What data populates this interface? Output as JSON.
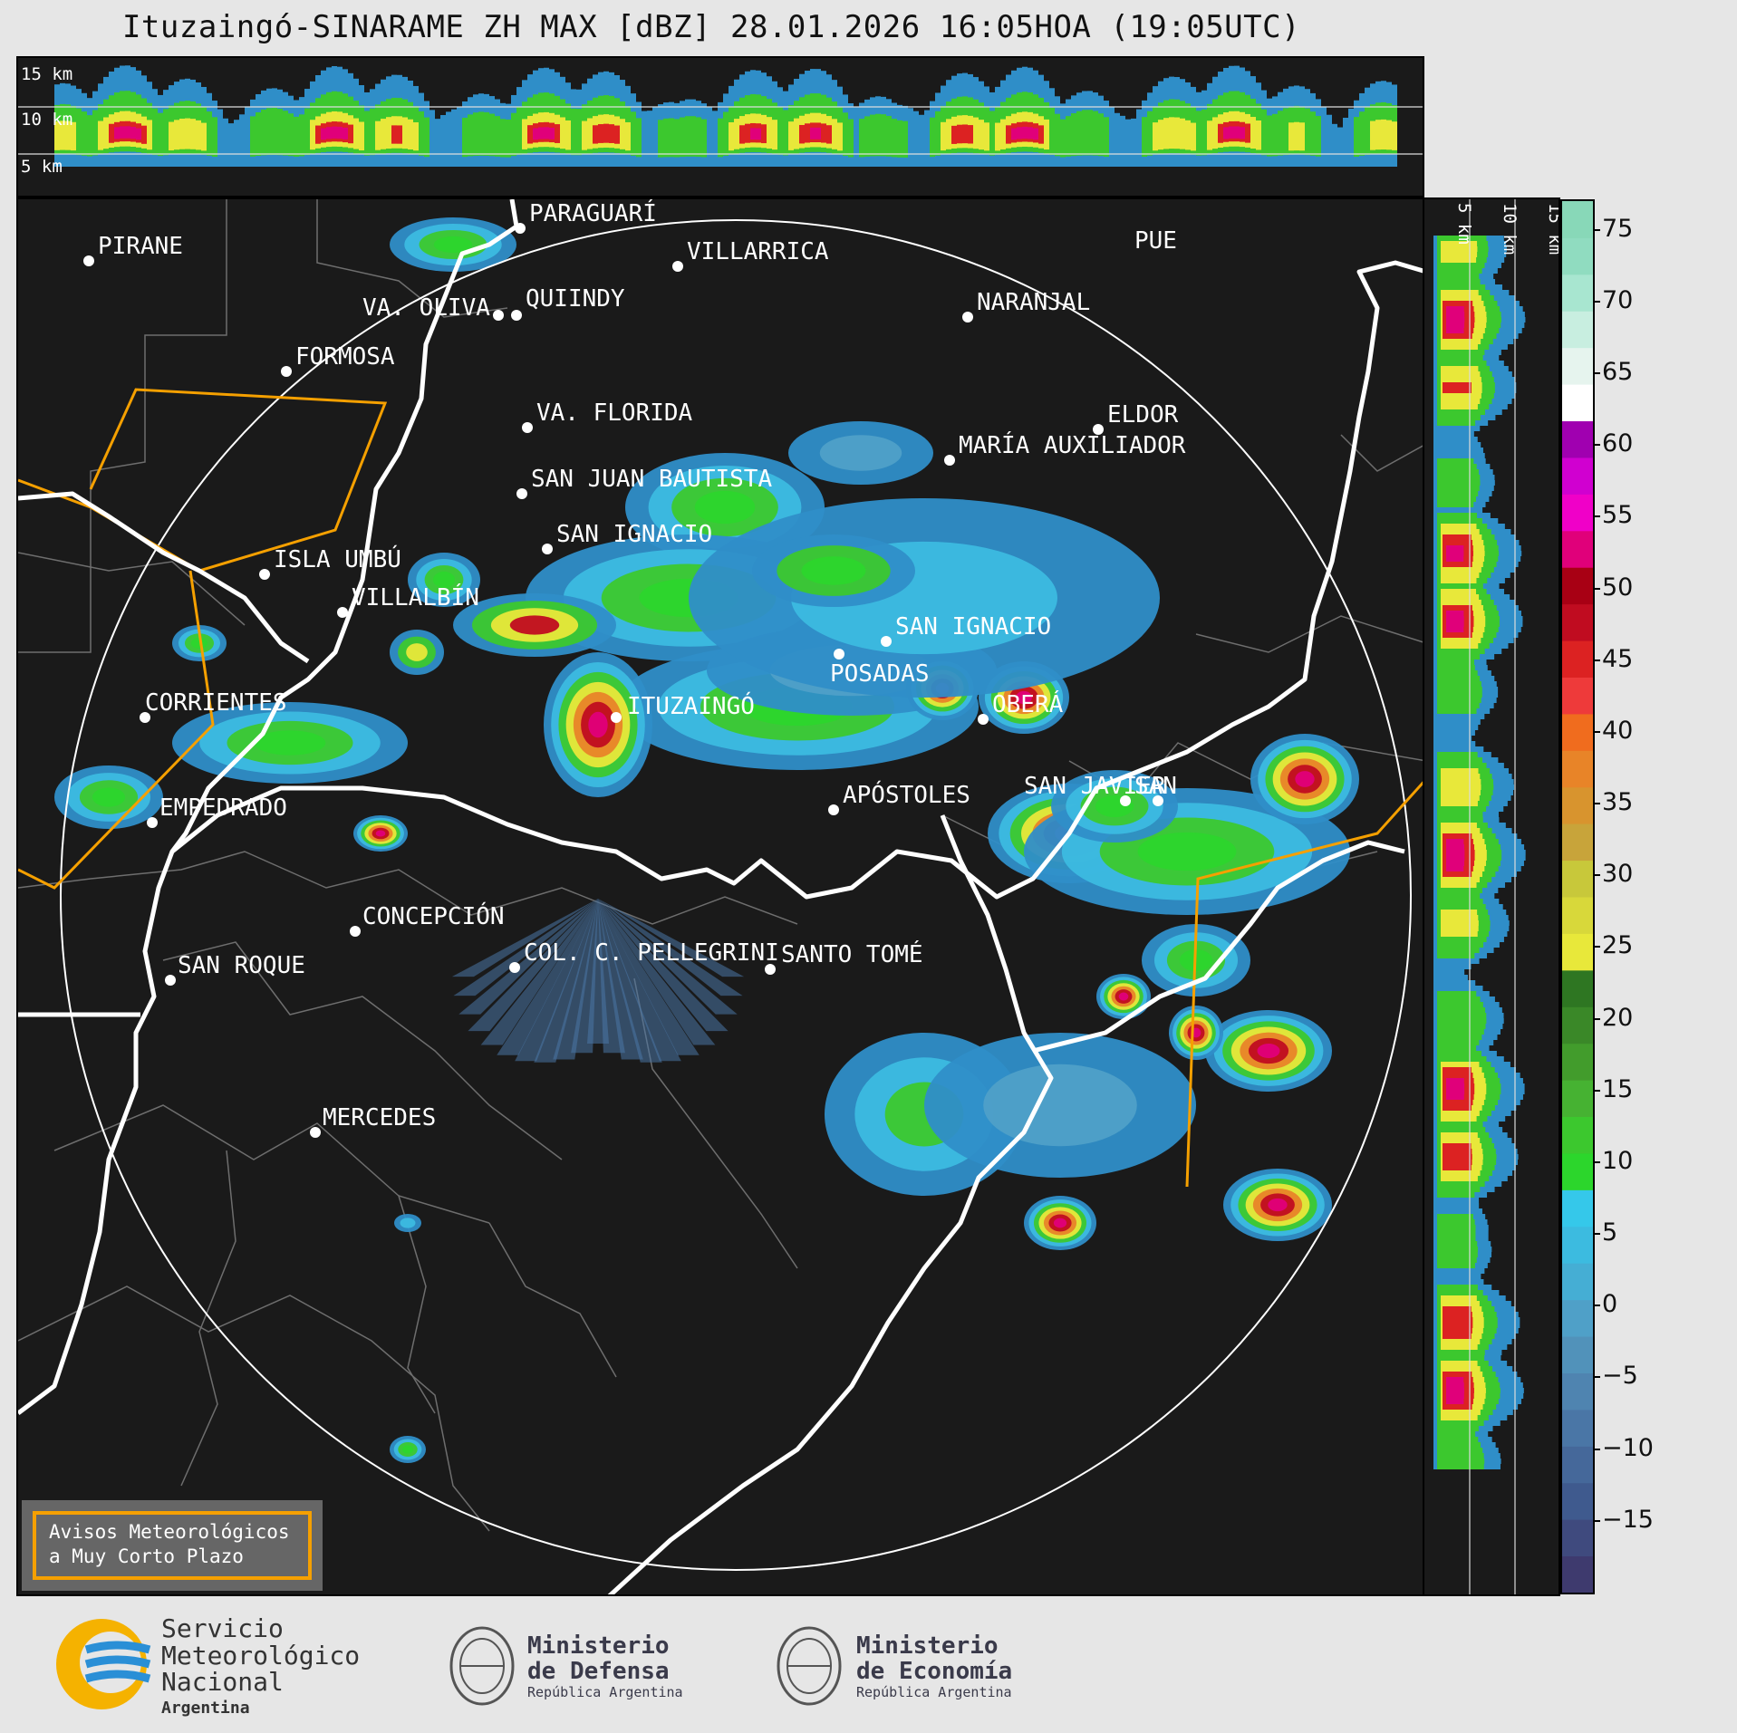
{
  "title": "Ituzaingó-SINARAME ZH MAX [dBZ] 28.01.2026 16:05HOA (19:05UTC)",
  "height_labels": [
    "15 km",
    "10 km",
    "5 km"
  ],
  "side_height_labels": [
    "5 km",
    "10 km",
    "15 km"
  ],
  "cities": [
    {
      "name": "PIRANE"
    },
    {
      "name": "PARAGUARÍ"
    },
    {
      "name": "VILLARRICA"
    },
    {
      "name": "VA. OLIVA"
    },
    {
      "name": "QUIINDY"
    },
    {
      "name": "NARANJAL"
    },
    {
      "name": "FORMOSA"
    },
    {
      "name": "VA. FLORIDA"
    },
    {
      "name": "ELDOR"
    },
    {
      "name": "MARÍA AUXILIADOR"
    },
    {
      "name": "SAN JUAN BAUTISTA"
    },
    {
      "name": "SAN IGNACIO"
    },
    {
      "name": "ISLA UMBÚ"
    },
    {
      "name": "VILLALBÍN"
    },
    {
      "name": "SAN IGNACIO"
    },
    {
      "name": "POSADAS"
    },
    {
      "name": "CORRIENTES"
    },
    {
      "name": "ITUZAINGÓ"
    },
    {
      "name": "OBERÁ"
    },
    {
      "name": "APÓSTOLES"
    },
    {
      "name": "SAN JAVIER"
    },
    {
      "name": "SAN"
    },
    {
      "name": "EMPEDRADO"
    },
    {
      "name": "CONCEPCIÓN"
    },
    {
      "name": "COL. C. PELLEGRINI"
    },
    {
      "name": "SANTO TOMÉ"
    },
    {
      "name": "SAN ROQUE"
    },
    {
      "name": "MERCEDES"
    },
    {
      "name": "PUE"
    }
  ],
  "warning_box": {
    "line1": "Avisos Meteorológicos",
    "line2": "a Muy Corto Plazo"
  },
  "colorbar": {
    "unit": "dBZ",
    "ticks": [
      "75",
      "70",
      "65",
      "60",
      "55",
      "50",
      "45",
      "40",
      "35",
      "30",
      "25",
      "20",
      "15",
      "10",
      "5",
      "0",
      "−5",
      "−10",
      "−15"
    ],
    "range": [
      -20,
      77
    ]
  },
  "logos": {
    "smn": {
      "line1": "Servicio",
      "line2": "Meteorológico",
      "line3": "Nacional",
      "line4": "Argentina"
    },
    "defensa": {
      "line1": "Ministerio",
      "line2": "de Defensa",
      "line3": "República Argentina"
    },
    "economia": {
      "line1": "Ministerio",
      "line2": "de Economía",
      "line3": "República Argentina"
    }
  },
  "colors": {
    "background": "#1a1a1a",
    "border_orange": "#f5a000",
    "river": "#ffffff",
    "smn_blue": "#2a8fd6",
    "smn_yellow": "#f5b200"
  }
}
